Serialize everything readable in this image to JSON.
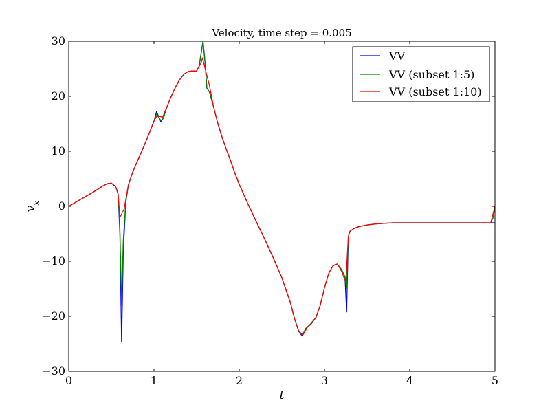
{
  "chart_data": {
    "type": "line",
    "title": "Velocity, time step = 0.005",
    "xlabel": "t",
    "ylabel": "v",
    "ylabel_subscript": "x",
    "xlim": [
      0,
      5
    ],
    "ylim": [
      -30,
      30
    ],
    "x_ticks": [
      0,
      1,
      2,
      3,
      4,
      5
    ],
    "y_ticks": [
      -30,
      -20,
      -10,
      0,
      10,
      20,
      30
    ],
    "x_tick_labels": [
      "0",
      "1",
      "2",
      "3",
      "4",
      "5"
    ],
    "y_tick_labels": [
      "−30",
      "−20",
      "−10",
      "0",
      "10",
      "20",
      "30"
    ],
    "grid": false,
    "legend_position": "top-right",
    "series": [
      {
        "name": "VV",
        "color": "#0000ff",
        "points": [
          [
            0,
            0
          ],
          [
            0.1,
            0.9
          ],
          [
            0.2,
            1.8
          ],
          [
            0.3,
            2.7
          ],
          [
            0.4,
            3.7
          ],
          [
            0.45,
            4.1
          ],
          [
            0.5,
            4.2
          ],
          [
            0.55,
            3.6
          ],
          [
            0.58,
            2.2
          ],
          [
            0.6,
            -5
          ],
          [
            0.62,
            -24.7
          ],
          [
            0.64,
            -8
          ],
          [
            0.67,
            0.8
          ],
          [
            0.7,
            3.9
          ],
          [
            0.75,
            6.2
          ],
          [
            0.8,
            8.0
          ],
          [
            0.85,
            9.8
          ],
          [
            0.9,
            11.6
          ],
          [
            0.95,
            13.5
          ],
          [
            1.0,
            15.5
          ],
          [
            1.03,
            17.2
          ],
          [
            1.05,
            16.5
          ],
          [
            1.08,
            15.4
          ],
          [
            1.11,
            16.0
          ],
          [
            1.15,
            18.0
          ],
          [
            1.2,
            19.9
          ],
          [
            1.25,
            21.6
          ],
          [
            1.3,
            23.0
          ],
          [
            1.35,
            24.0
          ],
          [
            1.4,
            24.5
          ],
          [
            1.45,
            24.6
          ],
          [
            1.5,
            24.6
          ],
          [
            1.53,
            25.5
          ],
          [
            1.56,
            28.5
          ],
          [
            1.575,
            30.0
          ],
          [
            1.6,
            26.0
          ],
          [
            1.62,
            21.5
          ],
          [
            1.65,
            20.8
          ],
          [
            1.7,
            18.0
          ],
          [
            1.75,
            15.0
          ],
          [
            1.8,
            12.5
          ],
          [
            1.85,
            10.3
          ],
          [
            1.9,
            8.2
          ],
          [
            1.95,
            6.0
          ],
          [
            2.0,
            4.0
          ],
          [
            2.1,
            0.5
          ],
          [
            2.2,
            -2.8
          ],
          [
            2.3,
            -6.0
          ],
          [
            2.4,
            -9.4
          ],
          [
            2.5,
            -13.0
          ],
          [
            2.6,
            -17.5
          ],
          [
            2.65,
            -20.5
          ],
          [
            2.7,
            -22.8
          ],
          [
            2.74,
            -23.6
          ],
          [
            2.78,
            -22.2
          ],
          [
            2.83,
            -21.5
          ],
          [
            2.9,
            -20.2
          ],
          [
            2.95,
            -18.0
          ],
          [
            3.0,
            -14.8
          ],
          [
            3.05,
            -12.2
          ],
          [
            3.1,
            -10.8
          ],
          [
            3.15,
            -10.5
          ],
          [
            3.2,
            -11.5
          ],
          [
            3.24,
            -12.8
          ],
          [
            3.26,
            -19.2
          ],
          [
            3.27,
            -12
          ],
          [
            3.28,
            -5.5
          ],
          [
            3.3,
            -4.5
          ],
          [
            3.35,
            -4.0
          ],
          [
            3.4,
            -3.7
          ],
          [
            3.5,
            -3.4
          ],
          [
            3.6,
            -3.2
          ],
          [
            3.8,
            -3.0
          ],
          [
            4.0,
            -3.0
          ],
          [
            4.5,
            -3.0
          ],
          [
            4.95,
            -3.0
          ],
          [
            4.98,
            -3.0
          ],
          [
            5.0,
            -3.0
          ]
        ]
      },
      {
        "name": "VV (subset 1:5)",
        "color": "#008000",
        "points": [
          [
            0,
            0
          ],
          [
            0.1,
            0.9
          ],
          [
            0.2,
            1.8
          ],
          [
            0.3,
            2.7
          ],
          [
            0.4,
            3.7
          ],
          [
            0.45,
            4.1
          ],
          [
            0.5,
            4.2
          ],
          [
            0.55,
            3.6
          ],
          [
            0.58,
            2.2
          ],
          [
            0.6,
            -4
          ],
          [
            0.62,
            -18
          ],
          [
            0.64,
            -6
          ],
          [
            0.67,
            0.8
          ],
          [
            0.7,
            3.9
          ],
          [
            0.75,
            6.2
          ],
          [
            0.8,
            8.0
          ],
          [
            0.85,
            9.8
          ],
          [
            0.9,
            11.6
          ],
          [
            0.95,
            13.5
          ],
          [
            1.0,
            15.5
          ],
          [
            1.03,
            16.8
          ],
          [
            1.05,
            16.3
          ],
          [
            1.08,
            15.6
          ],
          [
            1.11,
            16.0
          ],
          [
            1.15,
            18.0
          ],
          [
            1.2,
            19.9
          ],
          [
            1.25,
            21.6
          ],
          [
            1.3,
            23.0
          ],
          [
            1.35,
            24.0
          ],
          [
            1.4,
            24.5
          ],
          [
            1.45,
            24.6
          ],
          [
            1.5,
            24.6
          ],
          [
            1.53,
            25.5
          ],
          [
            1.56,
            28.5
          ],
          [
            1.575,
            30.0
          ],
          [
            1.6,
            26.0
          ],
          [
            1.62,
            21.5
          ],
          [
            1.65,
            20.8
          ],
          [
            1.7,
            18.0
          ],
          [
            1.75,
            15.0
          ],
          [
            1.8,
            12.5
          ],
          [
            1.85,
            10.3
          ],
          [
            1.9,
            8.2
          ],
          [
            1.95,
            6.0
          ],
          [
            2.0,
            4.0
          ],
          [
            2.1,
            0.5
          ],
          [
            2.2,
            -2.8
          ],
          [
            2.3,
            -6.0
          ],
          [
            2.4,
            -9.4
          ],
          [
            2.5,
            -13.0
          ],
          [
            2.6,
            -17.5
          ],
          [
            2.65,
            -20.5
          ],
          [
            2.7,
            -22.8
          ],
          [
            2.74,
            -23.4
          ],
          [
            2.78,
            -22.2
          ],
          [
            2.83,
            -21.5
          ],
          [
            2.9,
            -20.2
          ],
          [
            2.95,
            -18.0
          ],
          [
            3.0,
            -14.8
          ],
          [
            3.05,
            -12.2
          ],
          [
            3.1,
            -10.8
          ],
          [
            3.15,
            -10.5
          ],
          [
            3.2,
            -11.5
          ],
          [
            3.24,
            -12.8
          ],
          [
            3.26,
            -15
          ],
          [
            3.27,
            -10
          ],
          [
            3.28,
            -5.5
          ],
          [
            3.3,
            -4.5
          ],
          [
            3.35,
            -4.0
          ],
          [
            3.4,
            -3.7
          ],
          [
            3.5,
            -3.4
          ],
          [
            3.6,
            -3.2
          ],
          [
            3.8,
            -3.0
          ],
          [
            4.0,
            -3.0
          ],
          [
            4.5,
            -3.0
          ],
          [
            4.95,
            -3.0
          ],
          [
            4.98,
            -2.0
          ],
          [
            5.0,
            0.0
          ]
        ]
      },
      {
        "name": "VV (subset 1:10)",
        "color": "#ff0000",
        "points": [
          [
            0,
            0
          ],
          [
            0.1,
            0.9
          ],
          [
            0.2,
            1.8
          ],
          [
            0.3,
            2.7
          ],
          [
            0.4,
            3.7
          ],
          [
            0.45,
            4.1
          ],
          [
            0.5,
            4.2
          ],
          [
            0.55,
            3.6
          ],
          [
            0.58,
            2.2
          ],
          [
            0.6,
            -2.0
          ],
          [
            0.65,
            -0.5
          ],
          [
            0.7,
            3.9
          ],
          [
            0.75,
            6.2
          ],
          [
            0.8,
            8.0
          ],
          [
            0.85,
            9.8
          ],
          [
            0.9,
            11.6
          ],
          [
            0.95,
            13.5
          ],
          [
            1.0,
            15.5
          ],
          [
            1.03,
            16.3
          ],
          [
            1.05,
            16.4
          ],
          [
            1.1,
            16.2
          ],
          [
            1.15,
            18.0
          ],
          [
            1.2,
            19.9
          ],
          [
            1.25,
            21.6
          ],
          [
            1.3,
            23.0
          ],
          [
            1.35,
            24.0
          ],
          [
            1.4,
            24.5
          ],
          [
            1.45,
            24.6
          ],
          [
            1.5,
            24.6
          ],
          [
            1.55,
            26.0
          ],
          [
            1.57,
            27.0
          ],
          [
            1.6,
            25.0
          ],
          [
            1.65,
            22.0
          ],
          [
            1.7,
            18.0
          ],
          [
            1.75,
            15.0
          ],
          [
            1.8,
            12.5
          ],
          [
            1.85,
            10.3
          ],
          [
            1.9,
            8.2
          ],
          [
            1.95,
            6.0
          ],
          [
            2.0,
            4.0
          ],
          [
            2.1,
            0.5
          ],
          [
            2.2,
            -2.8
          ],
          [
            2.3,
            -6.0
          ],
          [
            2.4,
            -9.4
          ],
          [
            2.5,
            -13.0
          ],
          [
            2.6,
            -17.5
          ],
          [
            2.65,
            -20.5
          ],
          [
            2.7,
            -22.8
          ],
          [
            2.75,
            -23.3
          ],
          [
            2.8,
            -22.0
          ],
          [
            2.85,
            -21.3
          ],
          [
            2.9,
            -20.2
          ],
          [
            2.95,
            -18.0
          ],
          [
            3.0,
            -14.8
          ],
          [
            3.05,
            -12.2
          ],
          [
            3.1,
            -10.8
          ],
          [
            3.15,
            -10.5
          ],
          [
            3.2,
            -11.8
          ],
          [
            3.25,
            -13.8
          ],
          [
            3.28,
            -5.5
          ],
          [
            3.3,
            -4.5
          ],
          [
            3.35,
            -4.0
          ],
          [
            3.4,
            -3.7
          ],
          [
            3.5,
            -3.4
          ],
          [
            3.6,
            -3.2
          ],
          [
            3.8,
            -3.0
          ],
          [
            4.0,
            -3.0
          ],
          [
            4.5,
            -3.0
          ],
          [
            4.95,
            -3.0
          ],
          [
            5.0,
            0.0
          ]
        ]
      }
    ]
  }
}
